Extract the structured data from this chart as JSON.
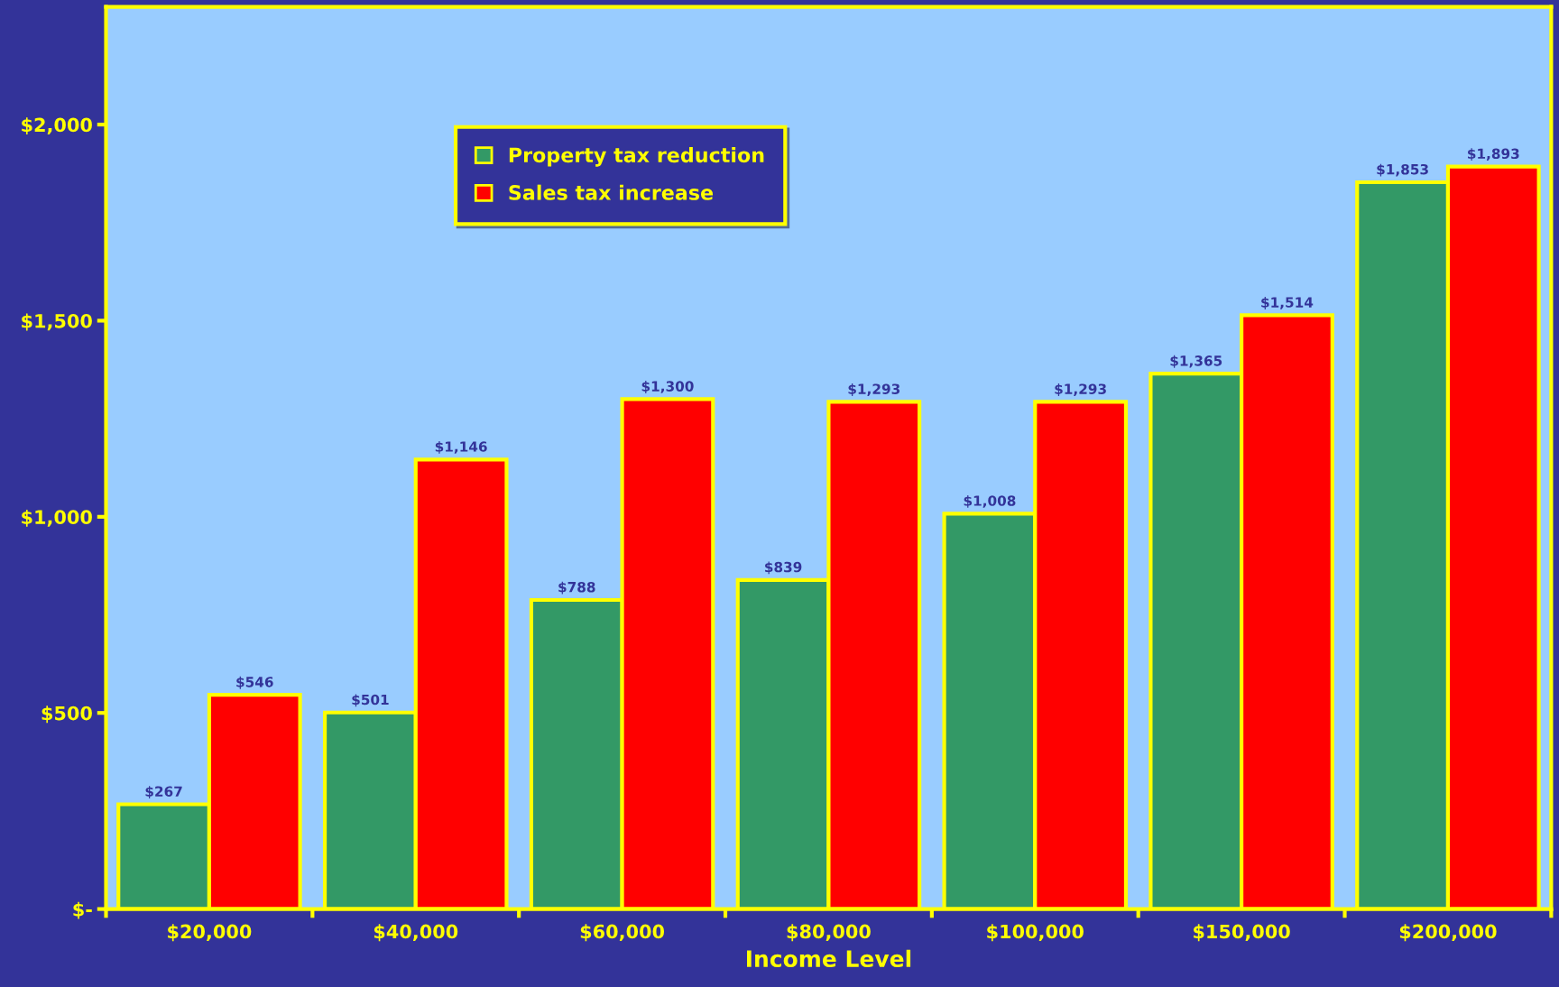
{
  "chart_data": {
    "type": "bar",
    "xlabel": "Income Level",
    "categories": [
      "$20,000",
      "$40,000",
      "$60,000",
      "$80,000",
      "$100,000",
      "$150,000",
      "$200,000"
    ],
    "series": [
      {
        "name": "Property tax reduction",
        "color": "#339966",
        "values": [
          267,
          501,
          788,
          839,
          1008,
          1365,
          1853
        ]
      },
      {
        "name": "Sales tax increase",
        "color": "#ff0000",
        "values": [
          546,
          1146,
          1300,
          1293,
          1293,
          1514,
          1893
        ]
      }
    ],
    "value_labels": [
      [
        "$267",
        "$501",
        "$788",
        "$839",
        "$1,008",
        "$1,365",
        "$1,853"
      ],
      [
        "$546",
        "$1,146",
        "$1,300",
        "$1,293",
        "$1,293",
        "$1,514",
        "$1,893"
      ]
    ],
    "ylim": [
      0,
      2300
    ],
    "yticks": [
      {
        "value": 0,
        "label": "$-"
      },
      {
        "value": 500,
        "label": "$500"
      },
      {
        "value": 1000,
        "label": "$1,000"
      },
      {
        "value": 1500,
        "label": "$1,500"
      },
      {
        "value": 2000,
        "label": "$2,000"
      }
    ],
    "grid": false,
    "legend": "top left"
  }
}
